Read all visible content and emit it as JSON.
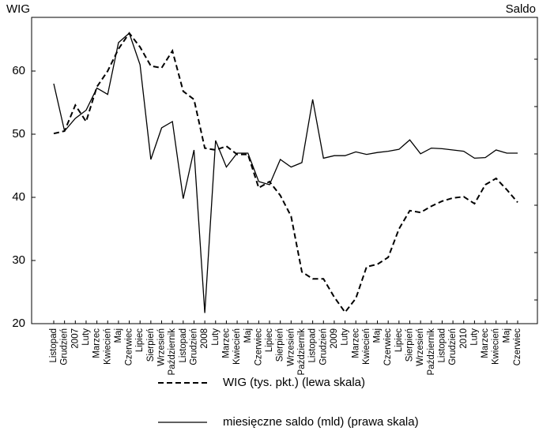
{
  "chart_data": {
    "type": "line",
    "y_label": "WIG",
    "y2_label": "Saldo",
    "categories": [
      "Listopad",
      "Grudzień",
      "2007",
      "Luty",
      "Marzec",
      "Kwiecień",
      "Maj",
      "Czerwiec",
      "Lipiec",
      "Sierpień",
      "Wrzesień",
      "Październik",
      "Listopad",
      "Grudzień",
      "2008",
      "Luty",
      "Marzec",
      "Kwiecień",
      "Maj",
      "Czerwiec",
      "Lipiec",
      "Sierpień",
      "Wrzesień",
      "Październik",
      "Listopad",
      "Grudzień",
      "2009",
      "Luty",
      "Marzec",
      "Kwiecień",
      "Maj",
      "Czerwiec",
      "Lipiec",
      "Sierpień",
      "Wrzesień",
      "Październik",
      "Listopad",
      "Grudzień",
      "2010",
      "Luty",
      "Marzec",
      "Kwiecień",
      "Maj",
      "Czerwiec"
    ],
    "series": [
      {
        "name": "WIG (tys. pkt.) (lewa skala)",
        "color": "#000000",
        "dashed": true,
        "values": [
          50.1,
          50.5,
          54.6,
          52,
          57.5,
          60,
          63.5,
          66,
          63.8,
          60.8,
          60.5,
          63.2,
          56.8,
          55.5,
          47.8,
          47.5,
          48.1,
          46.8,
          46.8,
          41.5,
          42.5,
          40.3,
          37,
          28.2,
          27.1,
          27.1,
          24.2,
          21.8,
          24,
          29,
          29.4,
          30.5,
          35,
          37.9,
          37.6,
          38.6,
          39.4,
          39.9,
          40.1,
          39,
          42,
          43,
          41.2,
          39.2
        ]
      },
      {
        "name": "miesięczne saldo (mld) (prawa skala)",
        "color": "#000000",
        "dashed": false,
        "values": [
          58,
          50.5,
          52.5,
          53.8,
          57.3,
          56.3,
          64.5,
          66,
          61,
          46,
          51,
          52,
          39.8,
          47.5,
          21.7,
          49,
          44.8,
          47,
          47,
          42.5,
          42,
          46,
          44.8,
          45.5,
          55.5,
          46.2,
          46.6,
          46.6,
          47.2,
          46.8,
          47.1,
          47.3,
          47.6,
          49.1,
          46.9,
          47.8,
          47.7,
          47.5,
          47.3,
          46.2,
          46.3,
          47.5,
          47,
          47
        ]
      }
    ],
    "ylim": [
      20,
      68.5
    ],
    "yticks": [
      20,
      30,
      40,
      50,
      60
    ]
  }
}
